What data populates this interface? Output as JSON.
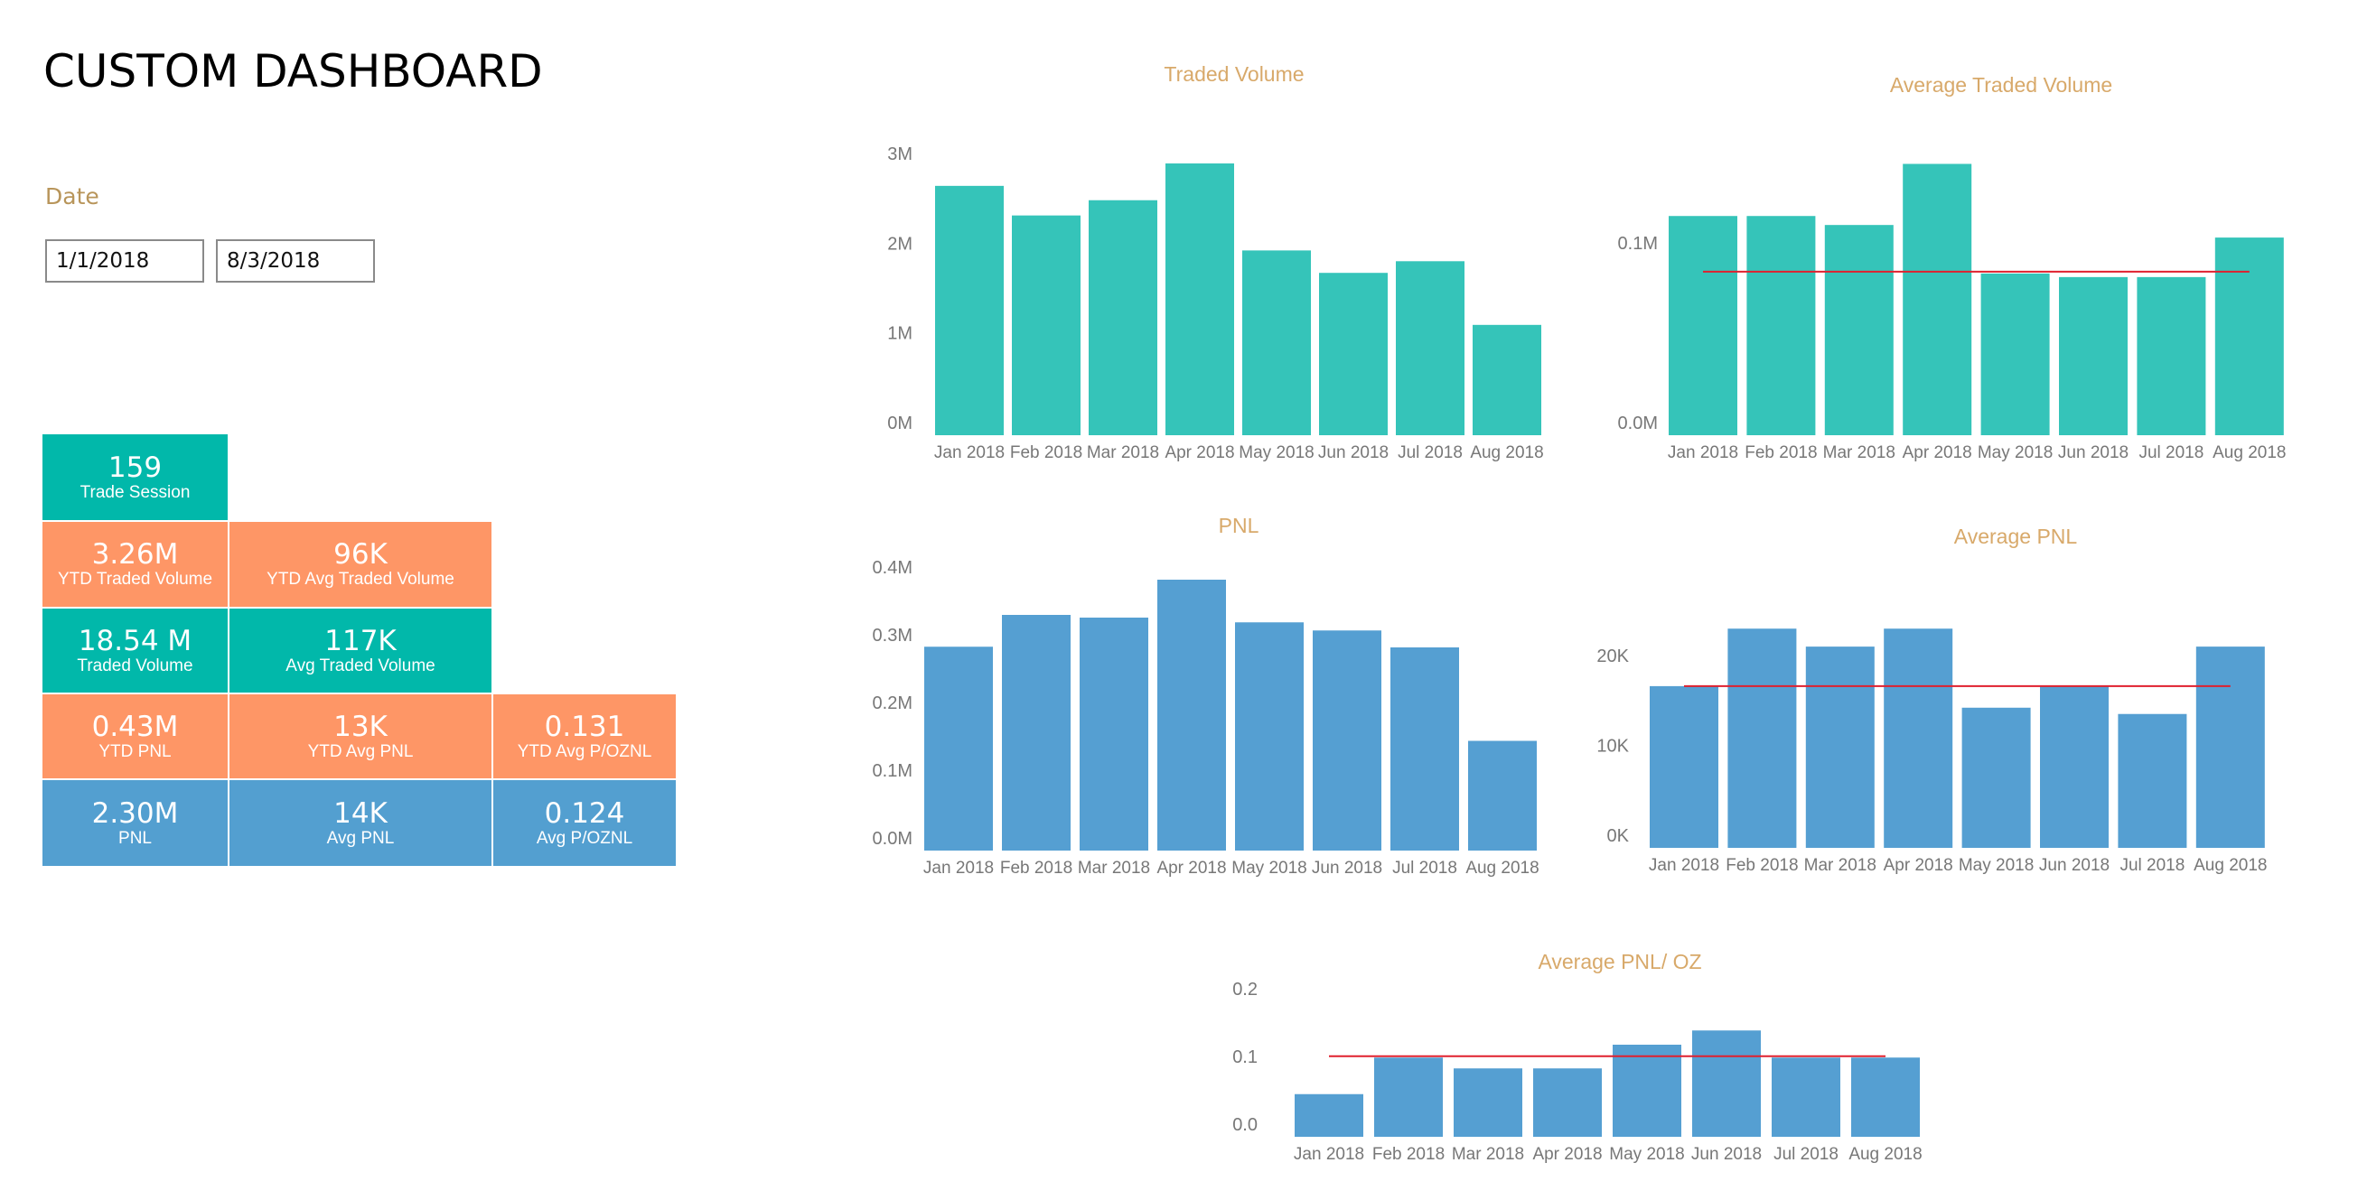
{
  "header": {
    "title": "CUSTOM DASHBOARD"
  },
  "filters": {
    "date_label": "Date",
    "start_date": "1/1/2018",
    "end_date": "8/3/2018"
  },
  "colors": {
    "teal": "#01B8AA",
    "orange": "#FE9666",
    "blue": "#539FD0",
    "bar_teal": "#35C4B9",
    "bar_blue": "#559FD2",
    "avg_line": "#E0202E",
    "chart_title": "#D8A96A",
    "axis_text": "#777777"
  },
  "kpis": [
    {
      "id": "trade-session",
      "value": "159",
      "label": "Trade Session",
      "color": "teal"
    },
    {
      "id": "ytd-traded-volume",
      "value": "3.26M",
      "label": "YTD Traded Volume",
      "color": "orange"
    },
    {
      "id": "ytd-avg-traded-volume",
      "value": "96K",
      "label": "YTD Avg Traded Volume",
      "color": "orange"
    },
    {
      "id": "traded-volume",
      "value": "18.54 M",
      "label": "Traded Volume",
      "color": "teal"
    },
    {
      "id": "avg-traded-volume",
      "value": "117K",
      "label": "Avg Traded Volume",
      "color": "teal"
    },
    {
      "id": "ytd-pnl",
      "value": "0.43M",
      "label": "YTD PNL",
      "color": "orange"
    },
    {
      "id": "ytd-avg-pnl",
      "value": "13K",
      "label": "YTD Avg PNL",
      "color": "orange"
    },
    {
      "id": "ytd-avg-p-oznl",
      "value": "0.131",
      "label": "YTD Avg P/OZNL",
      "color": "orange"
    },
    {
      "id": "pnl",
      "value": "2.30M",
      "label": "PNL",
      "color": "blue"
    },
    {
      "id": "avg-pnl",
      "value": "14K",
      "label": "Avg PNL",
      "color": "blue"
    },
    {
      "id": "avg-p-oznl",
      "value": "0.124",
      "label": "Avg P/OZNL",
      "color": "blue"
    }
  ],
  "chart_data": [
    {
      "id": "traded-volume",
      "type": "bar",
      "title": "Traded Volume",
      "categories": [
        "Jan 2018",
        "Feb 2018",
        "Mar 2018",
        "Apr 2018",
        "May 2018",
        "Jun 2018",
        "Jul 2018",
        "Aug 2018"
      ],
      "values": [
        2780000,
        2450000,
        2620000,
        3030000,
        2060000,
        1810000,
        1940000,
        1230000
      ],
      "yticks": [
        0,
        1000000,
        2000000,
        3000000
      ],
      "ytick_labels": [
        "0M",
        "1M",
        "2M",
        "3M"
      ],
      "ylim": [
        0,
        3000000
      ],
      "xlabel": "",
      "ylabel": "",
      "color": "#35C4B9",
      "average_line": null
    },
    {
      "id": "average-traded-volume",
      "type": "bar",
      "title": "Average Traded Volume",
      "categories": [
        "Jan 2018",
        "Feb 2018",
        "Mar 2018",
        "Apr 2018",
        "May 2018",
        "Jun 2018",
        "Jul 2018",
        "Aug 2018"
      ],
      "values": [
        122000,
        122000,
        117000,
        151000,
        90000,
        88000,
        88000,
        110000
      ],
      "yticks": [
        0,
        100000
      ],
      "ytick_labels": [
        "0.0M",
        "0.1M"
      ],
      "ylim": [
        0,
        100000
      ],
      "xlabel": "",
      "ylabel": "",
      "color": "#35C4B9",
      "average_line": 91000
    },
    {
      "id": "pnl",
      "type": "bar",
      "title": "PNL",
      "categories": [
        "Jan 2018",
        "Feb 2018",
        "Mar 2018",
        "Apr 2018",
        "May 2018",
        "Jun 2018",
        "Jul 2018",
        "Aug 2018"
      ],
      "values": [
        301000,
        348000,
        344000,
        400000,
        337000,
        325000,
        300000,
        162000
      ],
      "yticks": [
        0,
        100000,
        200000,
        300000,
        400000
      ],
      "ytick_labels": [
        "0.0M",
        "0.1M",
        "0.2M",
        "0.3M",
        "0.4M"
      ],
      "ylim": [
        0,
        400000
      ],
      "xlabel": "",
      "ylabel": "",
      "color": "#559FD2",
      "average_line": null
    },
    {
      "id": "average-pnl",
      "type": "bar",
      "title": "Average PNL",
      "categories": [
        "Jan 2018",
        "Feb 2018",
        "Mar 2018",
        "Apr 2018",
        "May 2018",
        "Jun 2018",
        "Jul 2018",
        "Aug 2018"
      ],
      "values": [
        18000,
        24400,
        22400,
        24400,
        15600,
        18000,
        14900,
        22400
      ],
      "yticks": [
        0,
        10000,
        20000
      ],
      "ytick_labels": [
        "0K",
        "10K",
        "20K"
      ],
      "ylim": [
        0,
        20000
      ],
      "xlabel": "",
      "ylabel": "",
      "color": "#559FD2",
      "average_line": 18000
    },
    {
      "id": "average-pnl-oz",
      "type": "bar",
      "title": "Average PNL/ OZ",
      "categories": [
        "Jan 2018",
        "Feb 2018",
        "Mar 2018",
        "Apr 2018",
        "May 2018",
        "Jun 2018",
        "Jul 2018",
        "Aug 2018"
      ],
      "values": [
        0.063,
        0.117,
        0.101,
        0.101,
        0.136,
        0.157,
        0.117,
        0.117
      ],
      "yticks": [
        0,
        0.1,
        0.2
      ],
      "ytick_labels": [
        "0.0",
        "0.1",
        "0.2"
      ],
      "ylim": [
        0,
        0.2
      ],
      "xlabel": "",
      "ylabel": "",
      "color": "#559FD2",
      "average_line": 0.119
    }
  ]
}
